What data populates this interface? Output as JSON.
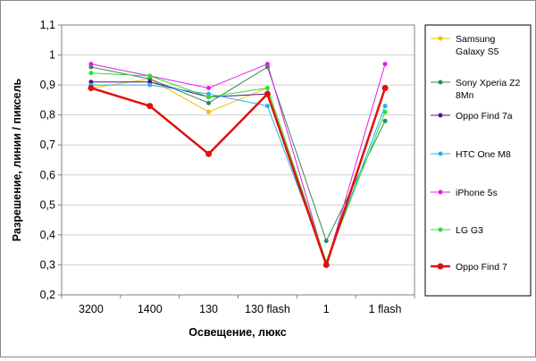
{
  "chart_data": {
    "type": "line",
    "title": "",
    "xlabel": "Освещение, люкс",
    "ylabel": "Разрешение, линии / пиксель",
    "categories": [
      "3200",
      "1400",
      "130",
      "130 flash",
      "1",
      "1 flash"
    ],
    "y_ticks": [
      "0,2",
      "0,3",
      "0,4",
      "0,5",
      "0,6",
      "0,7",
      "0,8",
      "0,9",
      "1",
      "1,1"
    ],
    "ylim": [
      0.2,
      1.1
    ],
    "grid": "horizontal",
    "legend_position": "right",
    "series": [
      {
        "name": "Samsung Galaxy S5",
        "legend_lines": [
          "Samsung",
          "Galaxy S5"
        ],
        "color": "#f0c000",
        "values": [
          0.89,
          0.92,
          0.81,
          0.89,
          0.31,
          0.89
        ]
      },
      {
        "name": "Sony Xperia Z2 8Mп",
        "legend_lines": [
          "Sony Xperia Z2",
          "8Mп"
        ],
        "color": "#2e8b57",
        "values": [
          0.96,
          0.92,
          0.84,
          0.96,
          0.38,
          0.78
        ]
      },
      {
        "name": "Oppo Find 7a",
        "legend_lines": [
          "Oppo Find 7a"
        ],
        "color": "#5a0a8a",
        "values": [
          0.91,
          0.91,
          0.86,
          0.87,
          0.3,
          0.89
        ]
      },
      {
        "name": "HTC One M8",
        "legend_lines": [
          "HTC One M8"
        ],
        "color": "#1cb8e8",
        "values": [
          0.9,
          0.9,
          0.87,
          0.83,
          0.31,
          0.83
        ]
      },
      {
        "name": "iPhone 5s",
        "legend_lines": [
          "iPhone 5s"
        ],
        "color": "#e020e0",
        "values": [
          0.97,
          0.93,
          0.89,
          0.97,
          0.3,
          0.97
        ]
      },
      {
        "name": "LG G3",
        "legend_lines": [
          "LG G3"
        ],
        "color": "#33dd33",
        "values": [
          0.94,
          0.93,
          0.86,
          0.89,
          0.31,
          0.81
        ]
      },
      {
        "name": "Oppo Find 7",
        "legend_lines": [
          "Oppo Find 7"
        ],
        "color": "#e01010",
        "values": [
          0.89,
          0.83,
          0.67,
          0.87,
          0.3,
          0.89
        ]
      }
    ]
  }
}
